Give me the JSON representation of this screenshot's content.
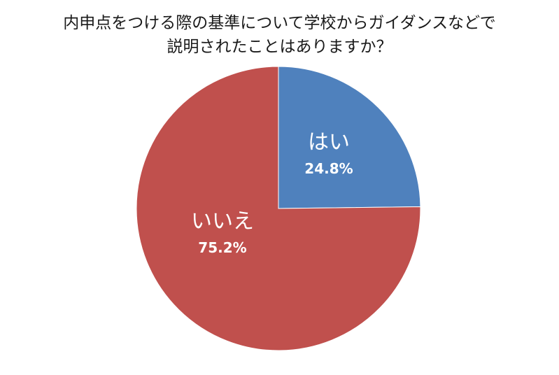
{
  "chart_data": {
    "type": "pie",
    "title_line1": "内申点をつける際の基準について学校からガイダンスなどで",
    "title_line2": "説明されたことはありますか？",
    "slices": [
      {
        "label": "はい",
        "value": 24.8,
        "value_label": "24.8%",
        "color": "#4f81bd"
      },
      {
        "label": "いいえ",
        "value": 75.2,
        "value_label": "75.2%",
        "color": "#c0504d"
      }
    ],
    "start_angle": "12 o'clock",
    "direction": "clockwise",
    "legend": "none"
  }
}
